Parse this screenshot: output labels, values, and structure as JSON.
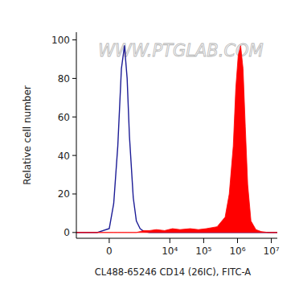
{
  "chart_data": {
    "type": "line",
    "watermark": "WWW.PTGLAB.COM",
    "x_label": "CL488-65246 CD14 (26IC), FITC-A",
    "y_label": "Relative cell number",
    "log": "x",
    "grid": false,
    "xlim": [
      -1500,
      15000000
    ],
    "ylim": [
      -3,
      104
    ],
    "xticks": [
      0,
      {
        "value": 10000,
        "label": "10⁴"
      },
      {
        "value": 100000,
        "label": "10⁵"
      },
      {
        "value": 1000000,
        "label": "10⁶"
      },
      {
        "value": 10000000,
        "label": "10⁷"
      }
    ],
    "yticks": [
      0,
      20,
      40,
      60,
      80,
      100
    ],
    "x": [
      -1500,
      -800,
      -300,
      0,
      100,
      200,
      300,
      400,
      500,
      600,
      800,
      1000,
      1300,
      1700,
      2500,
      4000,
      7000,
      12000,
      20000,
      40000,
      70000,
      120000,
      250000,
      430000,
      570000,
      750000,
      890000,
      1050000,
      1240000,
      1460000,
      1700000,
      2000000,
      2500000,
      3500000,
      5000000,
      8000000,
      15000000
    ],
    "series": [
      {
        "type": "line",
        "color": "#1c1c96",
        "values": [
          0,
          0,
          0,
          2,
          15,
          45,
          85,
          97,
          80,
          50,
          18,
          6,
          2,
          0.5,
          0,
          0,
          0,
          0,
          0,
          0,
          0,
          0,
          0,
          0,
          0,
          0,
          0,
          0,
          0,
          0,
          0,
          0,
          0,
          0,
          0,
          0,
          0
        ]
      },
      {
        "type": "area",
        "color": "#ff0000",
        "values": [
          0,
          0,
          0,
          0,
          0,
          0,
          0,
          0,
          0,
          0,
          0,
          0,
          0.5,
          1,
          1,
          1.5,
          1,
          2,
          1.5,
          2,
          1.5,
          2,
          3,
          8,
          20,
          45,
          75,
          92,
          97,
          85,
          55,
          25,
          6,
          1.5,
          0.5,
          0,
          0
        ]
      }
    ]
  }
}
